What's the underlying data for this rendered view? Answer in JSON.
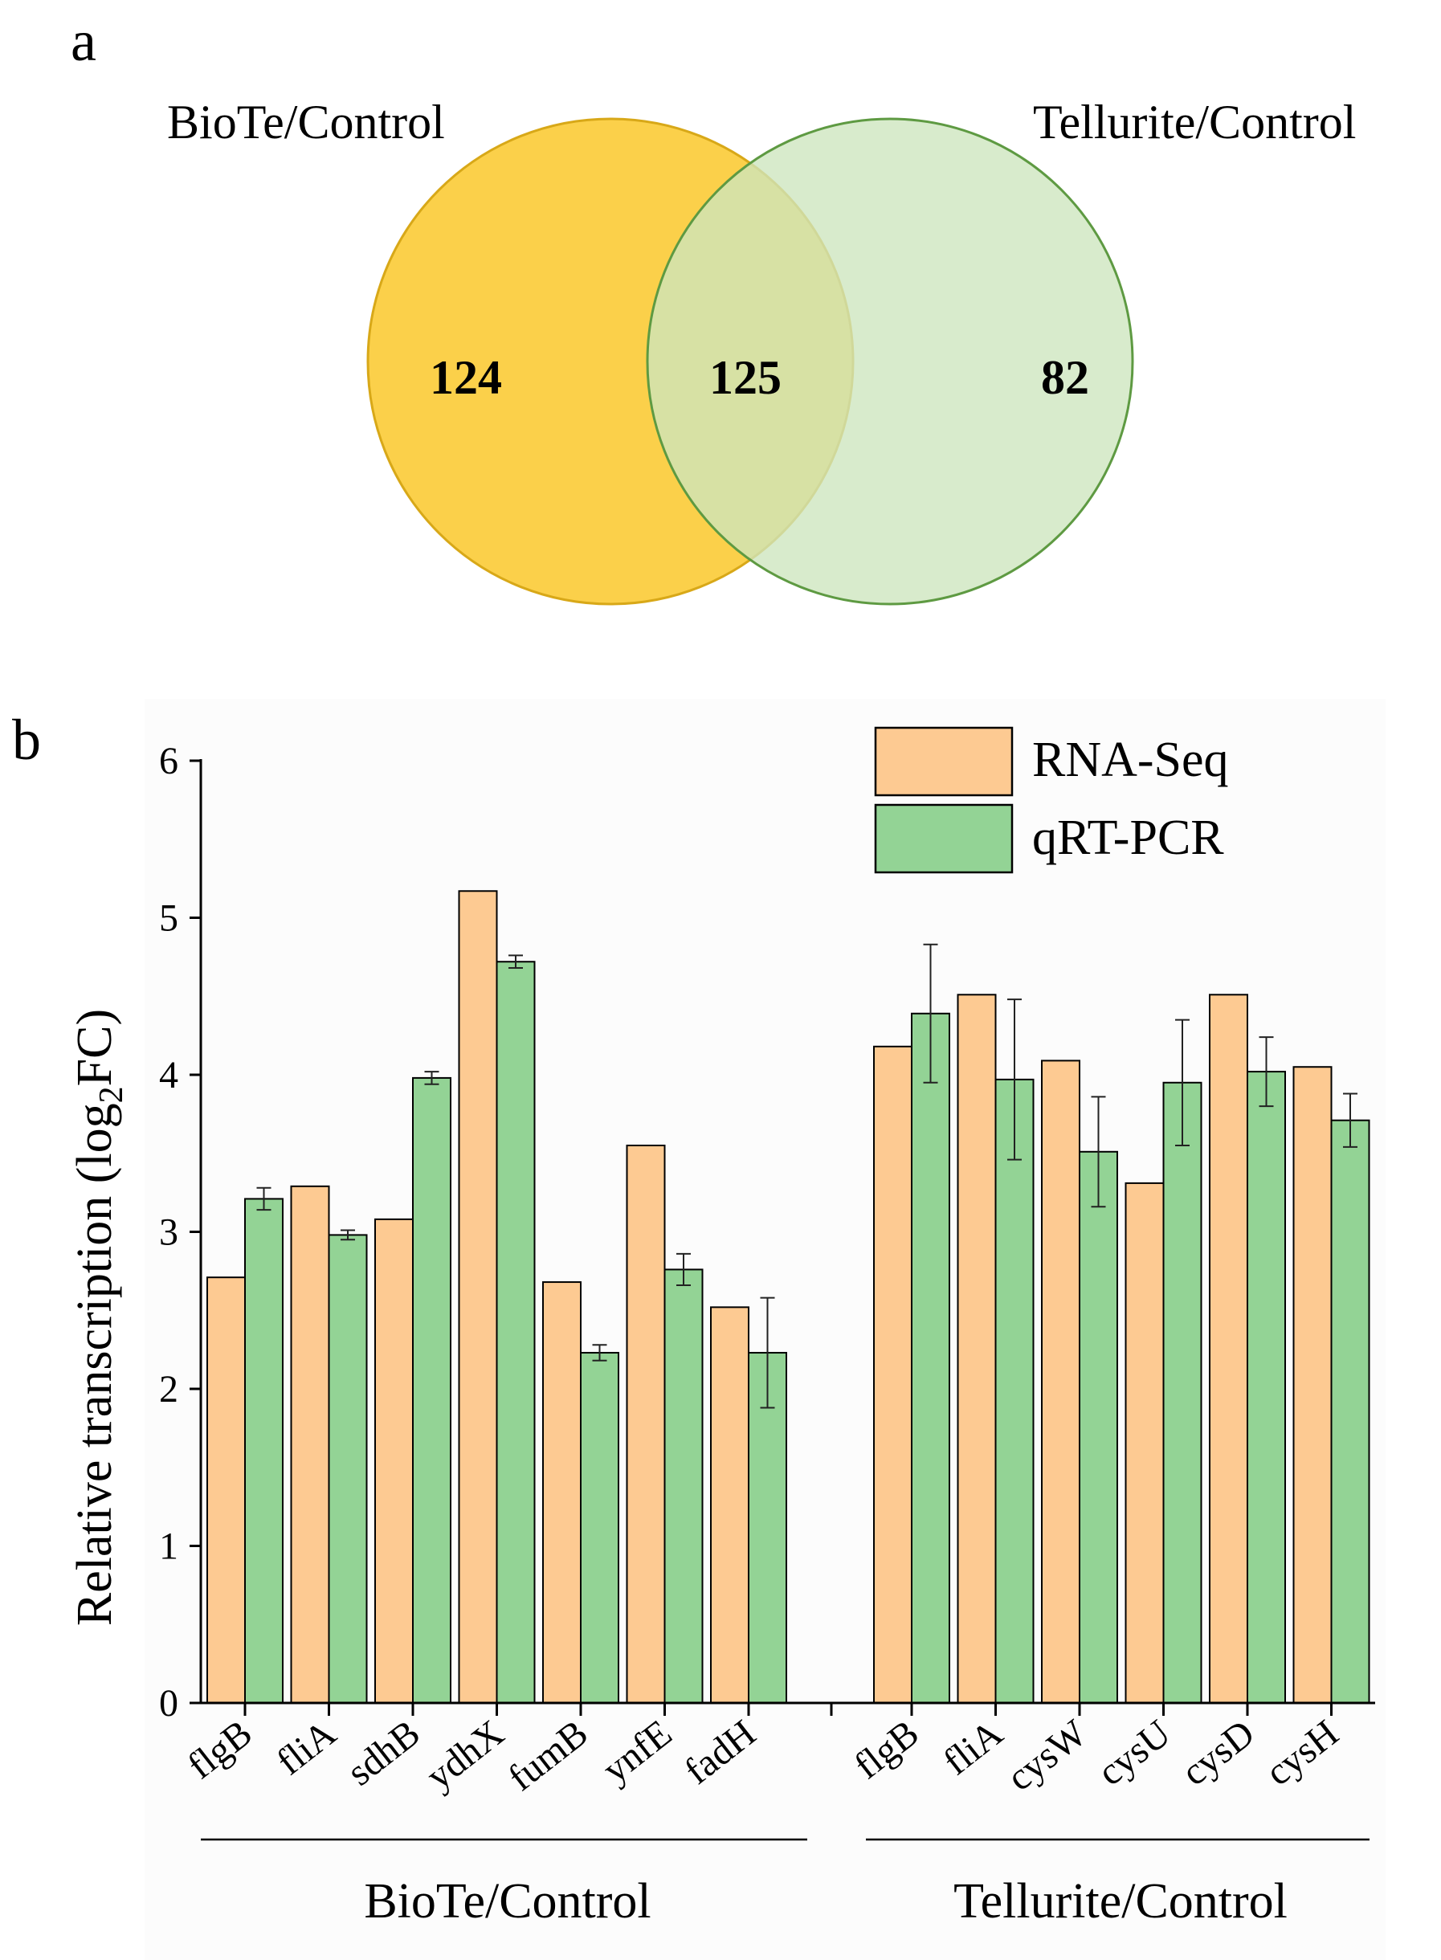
{
  "colors": {
    "rna_fill": "#FDCA92",
    "qpcr_fill": "#93D395",
    "venn_left_fill": "#FBD04A",
    "venn_left_stroke": "#D8A818",
    "venn_right_fill": "#CDE6BE",
    "venn_right_stroke": "#5E9A42",
    "venn_overlap_fill": "#D4C553",
    "axis": "#000000"
  },
  "panel_a": {
    "label": "a",
    "left_set_label": "BioTe/Control",
    "right_set_label": "Tellurite/Control",
    "left_only": "124",
    "overlap": "125",
    "right_only": "82"
  },
  "panel_b": {
    "label": "b",
    "legend": {
      "series1": "RNA-Seq",
      "series2": "qRT-PCR"
    },
    "group_labels": [
      "BioTe/Control",
      "Tellurite/Control"
    ]
  },
  "chart_data": {
    "type": "bar",
    "title": "",
    "ylabel": "Relative transcription (log2FC)",
    "ylabel_main": "Relative transcription (log",
    "ylabel_sub": "2",
    "ylabel_end": "FC)",
    "ylim": [
      0,
      6
    ],
    "yticks": [
      "0",
      "1",
      "2",
      "3",
      "4",
      "5",
      "6"
    ],
    "groups": [
      {
        "name": "BioTe/Control",
        "categories": [
          "flgB",
          "fliA",
          "sdhB",
          "ydhX",
          "fumB",
          "ynfE",
          "fadH"
        ]
      },
      {
        "name": "Tellurite/Control",
        "categories": [
          "flgB",
          "fliA",
          "cysW",
          "cysU",
          "cysD",
          "cysH"
        ]
      }
    ],
    "categories": [
      "flgB",
      "fliA",
      "sdhB",
      "ydhX",
      "fumB",
      "ynfE",
      "fadH",
      "flgB",
      "fliA",
      "cysW",
      "cysU",
      "cysD",
      "cysH"
    ],
    "series": [
      {
        "name": "RNA-Seq",
        "values": [
          2.71,
          3.29,
          3.08,
          5.17,
          2.68,
          3.55,
          2.52,
          4.18,
          4.51,
          4.09,
          3.31,
          4.51,
          4.05
        ]
      },
      {
        "name": "qRT-PCR",
        "values": [
          3.21,
          2.98,
          3.98,
          4.72,
          2.23,
          2.76,
          2.23,
          4.39,
          3.97,
          3.51,
          3.95,
          4.02,
          3.71
        ],
        "errors": [
          0.07,
          0.03,
          0.04,
          0.04,
          0.05,
          0.1,
          0.35,
          0.44,
          0.51,
          0.35,
          0.4,
          0.22,
          0.17
        ]
      }
    ]
  }
}
